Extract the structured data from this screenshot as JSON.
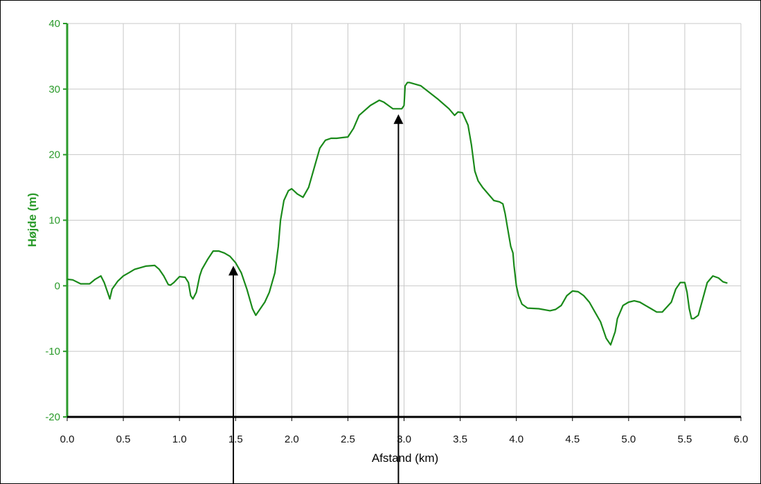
{
  "chart_data": {
    "type": "line",
    "xlabel": "Afstand (km)",
    "ylabel": "Højde (m)",
    "xlim": [
      0.0,
      6.0
    ],
    "ylim": [
      -20,
      40
    ],
    "xticks": [
      "0.0",
      "0.5",
      "1.0",
      "1.5",
      "2.0",
      "2.5",
      "3.0",
      "3.5",
      "4.0",
      "4.5",
      "5.0",
      "5.5",
      "6.0"
    ],
    "yticks": [
      "40",
      "30",
      "20",
      "10",
      "0",
      "-10",
      "-20"
    ],
    "grid": true,
    "line_color": "#1a8a1a",
    "y_axis_color": "#2a9a2a",
    "series": [
      {
        "x": [
          0.0,
          0.05,
          0.12,
          0.2,
          0.25,
          0.3,
          0.33,
          0.36,
          0.38,
          0.4,
          0.45,
          0.5,
          0.55,
          0.6,
          0.7,
          0.78,
          0.82,
          0.86,
          0.9,
          0.92,
          0.95,
          1.0,
          1.05,
          1.08,
          1.1,
          1.12,
          1.15,
          1.18,
          1.2,
          1.25,
          1.3,
          1.35,
          1.4,
          1.45,
          1.5,
          1.55,
          1.6,
          1.65,
          1.68,
          1.72,
          1.76,
          1.8,
          1.85,
          1.88,
          1.9,
          1.93,
          1.97,
          2.0,
          2.05,
          2.1,
          2.15,
          2.2,
          2.25,
          2.3,
          2.35,
          2.4,
          2.45,
          2.5,
          2.55,
          2.6,
          2.7,
          2.78,
          2.82,
          2.86,
          2.9,
          2.95,
          2.98,
          3.0,
          3.01,
          3.03,
          3.05,
          3.15,
          3.3,
          3.4,
          3.45,
          3.48,
          3.52,
          3.57,
          3.6,
          3.63,
          3.66,
          3.7,
          3.8,
          3.85,
          3.88,
          3.9,
          3.92,
          3.95,
          3.97,
          3.98,
          4.0,
          4.02,
          4.05,
          4.1,
          4.2,
          4.3,
          4.35,
          4.4,
          4.45,
          4.5,
          4.55,
          4.6,
          4.65,
          4.7,
          4.75,
          4.8,
          4.84,
          4.88,
          4.9,
          4.95,
          5.0,
          5.05,
          5.1,
          5.15,
          5.2,
          5.25,
          5.3,
          5.38,
          5.42,
          5.46,
          5.5,
          5.52,
          5.54,
          5.56,
          5.58,
          5.62,
          5.66,
          5.7,
          5.75,
          5.8,
          5.84,
          5.88
        ],
        "y": [
          1.0,
          0.9,
          0.3,
          0.3,
          1.0,
          1.5,
          0.5,
          -1.0,
          -2.0,
          -0.5,
          0.7,
          1.5,
          2.0,
          2.5,
          3.0,
          3.1,
          2.5,
          1.5,
          0.2,
          0.1,
          0.5,
          1.4,
          1.3,
          0.5,
          -1.5,
          -2.0,
          -1.0,
          1.5,
          2.5,
          4.0,
          5.3,
          5.3,
          5.0,
          4.5,
          3.5,
          2.0,
          -0.5,
          -3.5,
          -4.5,
          -3.5,
          -2.5,
          -1.0,
          2.0,
          6.0,
          10.0,
          13.0,
          14.5,
          14.8,
          14.0,
          13.5,
          15.0,
          18.0,
          21.0,
          22.2,
          22.5,
          22.5,
          22.6,
          22.7,
          24.0,
          26.0,
          27.5,
          28.3,
          28.0,
          27.5,
          27.0,
          27.0,
          27.0,
          27.5,
          30.5,
          31.0,
          31.0,
          30.5,
          28.5,
          27.0,
          26.0,
          26.5,
          26.4,
          24.5,
          21.5,
          17.5,
          16.0,
          15.0,
          13.0,
          12.8,
          12.5,
          11.0,
          9.0,
          6.0,
          5.0,
          3.0,
          0.0,
          -1.5,
          -2.8,
          -3.4,
          -3.5,
          -3.8,
          -3.6,
          -3.0,
          -1.5,
          -0.8,
          -0.9,
          -1.5,
          -2.5,
          -4.0,
          -5.5,
          -8.0,
          -9.0,
          -7.0,
          -5.0,
          -3.0,
          -2.5,
          -2.3,
          -2.5,
          -3.0,
          -3.5,
          -4.0,
          -4.0,
          -2.5,
          -0.5,
          0.5,
          0.5,
          -1.0,
          -3.5,
          -5.0,
          -5.0,
          -4.5,
          -2.0,
          0.5,
          1.5,
          1.2,
          0.6,
          0.4
        ]
      }
    ],
    "markers_x": [
      1.48,
      2.95
    ]
  }
}
